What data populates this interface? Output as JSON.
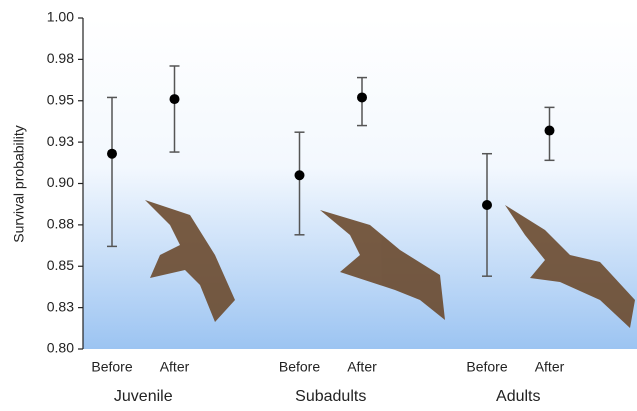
{
  "chart_data": {
    "type": "dot-errorbar",
    "ylabel": "Survival probability",
    "categories": [
      "Before",
      "After",
      "Before",
      "After",
      "Before",
      "After"
    ],
    "groups": [
      "Juvenile",
      "Subadults",
      "Adults"
    ],
    "values": [
      0.918,
      0.951,
      0.905,
      0.952,
      0.887,
      0.932
    ],
    "lower": [
      0.862,
      0.919,
      0.869,
      0.935,
      0.844,
      0.914
    ],
    "upper": [
      0.952,
      0.971,
      0.931,
      0.964,
      0.918,
      0.946
    ],
    "color": "#000000",
    "ylim": [
      0.8,
      1.0
    ],
    "yticks": [
      {
        "value": 0.8,
        "label": "0.80"
      },
      {
        "value": 0.825,
        "label": "0.83"
      },
      0.85,
      {
        "value": 0.875,
        "label": "0.88"
      },
      {
        "value": 0.9,
        "label": "0.90"
      },
      {
        "value": 0.925,
        "label": "0.93"
      },
      0.95,
      {
        "value": 0.975,
        "label": "0.98"
      },
      {
        "value": 1.0,
        "label": "1.00"
      }
    ]
  }
}
